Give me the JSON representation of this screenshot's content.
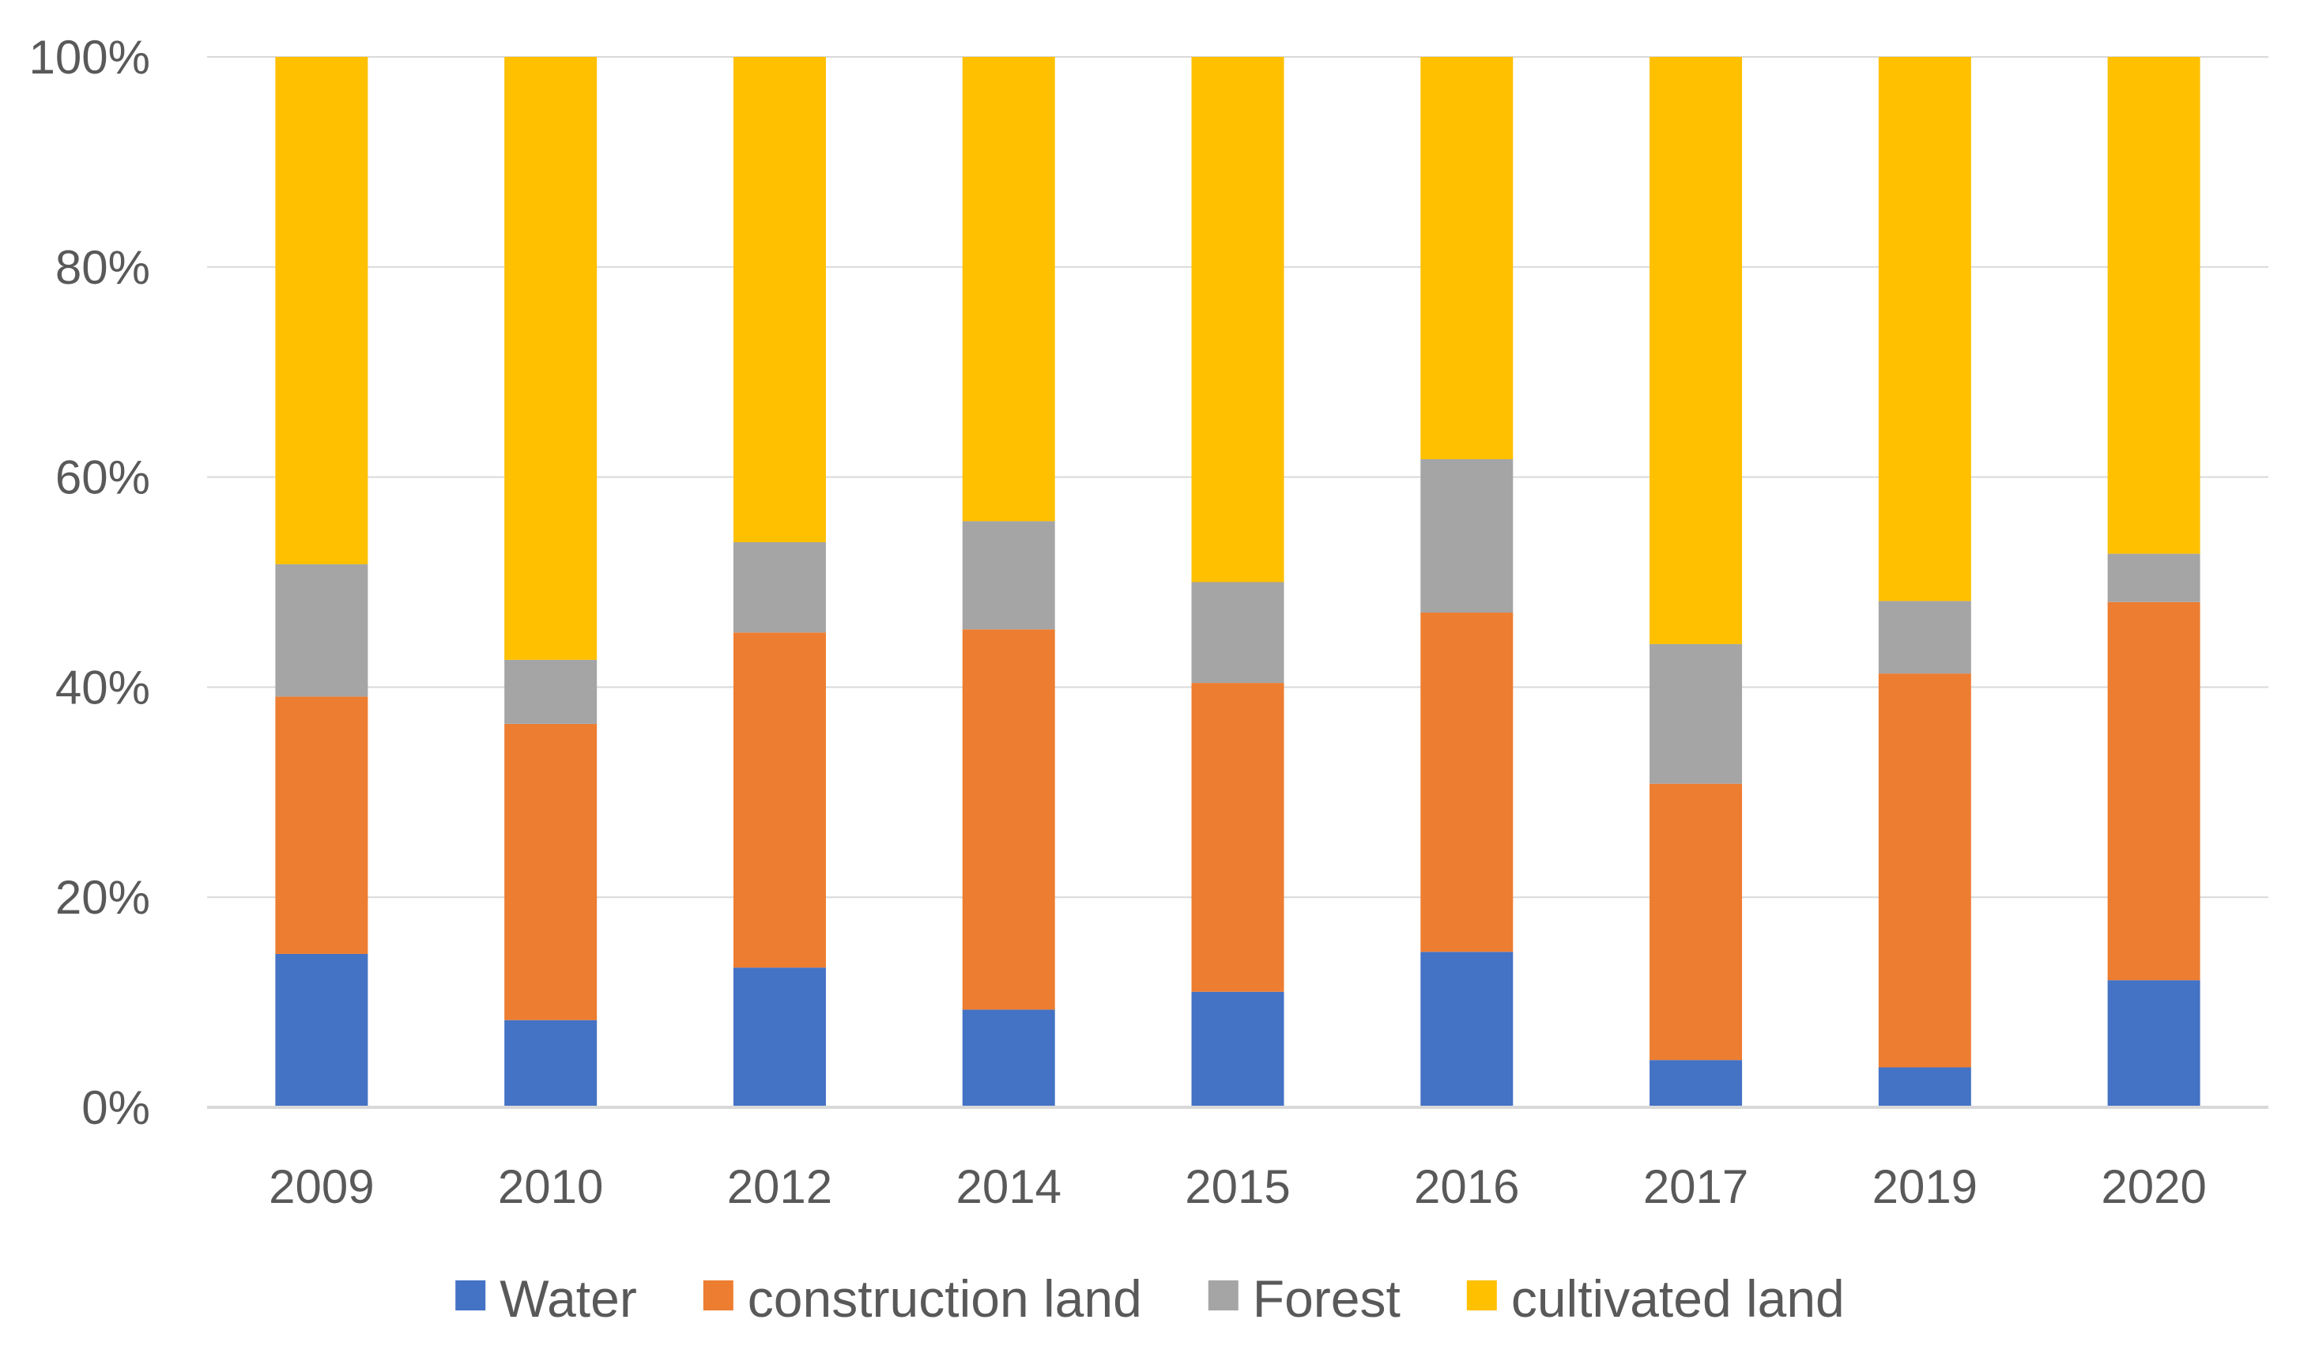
{
  "chart_data": {
    "type": "bar",
    "stacked": true,
    "percent": true,
    "title": "",
    "xlabel": "",
    "ylabel": "",
    "ylim": [
      0,
      100
    ],
    "yticks": [
      "0%",
      "20%",
      "40%",
      "60%",
      "80%",
      "100%"
    ],
    "categories": [
      "2009",
      "2010",
      "2012",
      "2014",
      "2015",
      "2016",
      "2017",
      "2019",
      "2020"
    ],
    "series": [
      {
        "name": "Water",
        "color": "#4472C4",
        "values": [
          14.6,
          8.3,
          13.3,
          9.3,
          11.0,
          14.8,
          4.5,
          3.8,
          12.1
        ]
      },
      {
        "name": "construction land",
        "color": "#ED7D31",
        "values": [
          24.5,
          28.2,
          31.9,
          36.2,
          29.4,
          32.3,
          26.3,
          37.5,
          36.0
        ]
      },
      {
        "name": "Forest",
        "color": "#A5A5A5",
        "values": [
          12.6,
          6.1,
          8.6,
          10.3,
          9.6,
          14.6,
          13.3,
          6.9,
          4.6
        ]
      },
      {
        "name": "cultivated land",
        "color": "#FFC000",
        "values": [
          48.3,
          57.4,
          46.2,
          44.2,
          50.0,
          38.3,
          55.9,
          51.8,
          47.3
        ]
      }
    ],
    "legend_position": "bottom",
    "grid": true
  }
}
